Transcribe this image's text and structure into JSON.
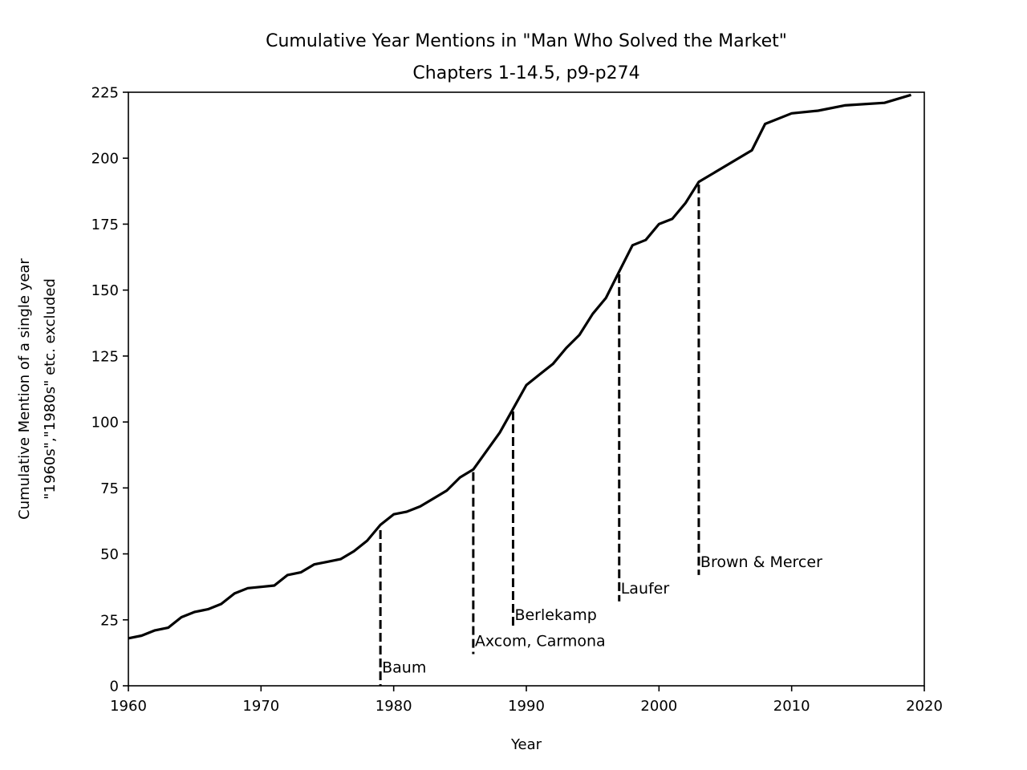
{
  "chart_data": {
    "type": "line",
    "title": "Cumulative Year Mentions in \"Man Who Solved the Market\"",
    "subtitle": "Chapters 1-14.5, p9-p274",
    "xlabel": "Year",
    "ylabel_lines": [
      "Cumulative Mention of a single year",
      "\"1960s\",\"1980s\" etc. excluded"
    ],
    "xlim": [
      1960,
      2020
    ],
    "ylim": [
      0,
      225
    ],
    "xticks": [
      1960,
      1970,
      1980,
      1990,
      2000,
      2010,
      2020
    ],
    "yticks": [
      0,
      25,
      50,
      75,
      100,
      125,
      150,
      175,
      200,
      225
    ],
    "grid": false,
    "line_color": "#000000",
    "series": [
      {
        "x": [
          1960,
          1961,
          1962,
          1963,
          1964,
          1965,
          1966,
          1967,
          1968,
          1969,
          1970,
          1971,
          1972,
          1973,
          1974,
          1975,
          1976,
          1977,
          1978,
          1979,
          1980,
          1981,
          1982,
          1983,
          1984,
          1985,
          1986,
          1987,
          1988,
          1989,
          1990,
          1991,
          1992,
          1993,
          1994,
          1995,
          1996,
          1997,
          1998,
          1999,
          2000,
          2001,
          2002,
          2003,
          2007,
          2008,
          2010,
          2012,
          2014,
          2017,
          2019
        ],
        "y": [
          18,
          19,
          21,
          22,
          26,
          28,
          29,
          31,
          35,
          37,
          37.5,
          38,
          42,
          43,
          46,
          47,
          48,
          51,
          55,
          61,
          65,
          66,
          68,
          71,
          74,
          79,
          82,
          89,
          96,
          105,
          114,
          118,
          122,
          128,
          133,
          141,
          147,
          157,
          167,
          169,
          175,
          177,
          183,
          191,
          203,
          213,
          217,
          218,
          220,
          221,
          224
        ]
      }
    ],
    "annotations": [
      {
        "label": "Baum",
        "x": 1979,
        "y_top": 59,
        "y_bottom": 0,
        "label_y": 5
      },
      {
        "label": "Axcom, Carmona",
        "x": 1986,
        "y_top": 81,
        "y_bottom": 12,
        "label_y": 15
      },
      {
        "label": "Berlekamp",
        "x": 1989,
        "y_top": 104,
        "y_bottom": 22,
        "label_y": 25
      },
      {
        "label": "Laufer",
        "x": 1997,
        "y_top": 156,
        "y_bottom": 32,
        "label_y": 35
      },
      {
        "label": "Brown & Mercer",
        "x": 2003,
        "y_top": 190,
        "y_bottom": 42,
        "label_y": 45
      }
    ]
  }
}
